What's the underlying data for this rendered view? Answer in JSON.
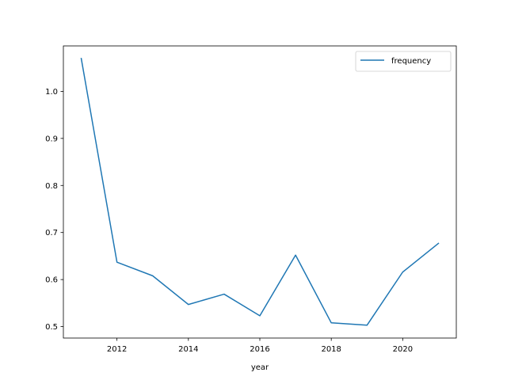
{
  "chart_data": {
    "type": "line",
    "xlabel": "year",
    "ylabel": "",
    "title": "",
    "xlim": [
      2010.5,
      2021.5
    ],
    "ylim": [
      0.4757,
      1.0966
    ],
    "x_ticks": [
      2012,
      2014,
      2016,
      2018,
      2020
    ],
    "y_ticks": [
      0.5,
      0.6,
      0.7,
      0.8,
      0.9,
      1.0
    ],
    "legend_position": "top-right",
    "grid": false,
    "series": [
      {
        "name": "frequency",
        "color": "#1f77b4",
        "x": [
          2011,
          2012,
          2013,
          2014,
          2015,
          2016,
          2017,
          2018,
          2019,
          2020,
          2021
        ],
        "y": [
          1.07,
          0.637,
          0.608,
          0.547,
          0.569,
          0.523,
          0.652,
          0.508,
          0.503,
          0.616,
          0.677
        ]
      }
    ]
  }
}
